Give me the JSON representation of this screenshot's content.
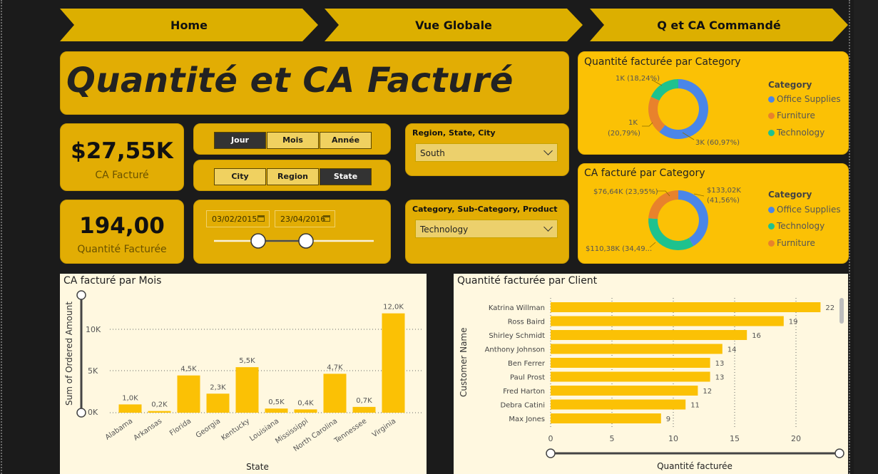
{
  "nav": [
    {
      "label": "Home"
    },
    {
      "label": "Vue Globale"
    },
    {
      "label": "Q et CA Commandé"
    }
  ],
  "page_title": "Quantité et CA Facturé",
  "kpis": {
    "ca": {
      "value": "$27,55K",
      "label": "CA Facturé"
    },
    "qty": {
      "value": "194,00",
      "label": "Quantité Facturée"
    }
  },
  "period_toggle": {
    "options": [
      "Jour",
      "Mois",
      "Année"
    ],
    "selected": "Jour"
  },
  "geo_toggle": {
    "options": [
      "City",
      "Region",
      "State"
    ],
    "selected": "State"
  },
  "date_range": {
    "start": "03/02/2015",
    "end": "23/04/2016"
  },
  "slicers": {
    "region": {
      "title": "Region, State, City",
      "value": "South"
    },
    "category": {
      "title": "Category, Sub-Category, Product",
      "value": "Technology"
    }
  },
  "colors": {
    "accent": "#fbc105",
    "blue": "#4a86e8",
    "orange": "#e8822c",
    "teal": "#1ec28e",
    "panel": "#fff8e0"
  },
  "donut_qty": {
    "title": "Quantité facturée par Category",
    "legend_title": "Category",
    "slices": [
      {
        "name": "Office Supplies",
        "label": "3K (60,97%)",
        "value": 60.97,
        "color": "#4a86e8"
      },
      {
        "name": "Furniture",
        "label_lines": [
          "1K",
          "(20,79%)"
        ],
        "value": 20.79,
        "color": "#e8822c"
      },
      {
        "name": "Technology",
        "label": "1K (18,24%)",
        "value": 18.24,
        "color": "#1ec28e"
      }
    ]
  },
  "donut_ca": {
    "title": "CA facturé par Category",
    "legend_title": "Category",
    "slices": [
      {
        "name": "Office Supplies",
        "label_lines": [
          "$133,02K",
          "(41,56%)"
        ],
        "value": 41.56,
        "color": "#4a86e8"
      },
      {
        "name": "Technology",
        "label": "$110,38K (34,49...",
        "value": 34.49,
        "color": "#1ec28e"
      },
      {
        "name": "Furniture",
        "label": "$76,64K (23,95%)",
        "value": 23.95,
        "color": "#e8822c"
      }
    ]
  },
  "chart_data": [
    {
      "type": "bar",
      "title": "CA facturé par Mois",
      "xlabel": "State",
      "ylabel": "Sum of Ordered Amount",
      "categories": [
        "Alabama",
        "Arkansas",
        "Florida",
        "Georgia",
        "Kentucky",
        "Louisiana",
        "Mississippi",
        "North Carolina",
        "Tennessee",
        "Virginia"
      ],
      "values": [
        1000,
        200,
        4500,
        2300,
        5500,
        500,
        400,
        4700,
        700,
        12000
      ],
      "data_labels": [
        "1,0K",
        "0,2K",
        "4,5K",
        "2,3K",
        "5,5K",
        "0,5K",
        "0,4K",
        "4,7K",
        "0,7K",
        "12,0K"
      ],
      "yticks": [
        "0K",
        "5K",
        "10K"
      ],
      "ylim": [
        0,
        13000
      ],
      "grid": true
    },
    {
      "type": "bar",
      "orientation": "horizontal",
      "title": "Quantité facturée par Client",
      "xlabel": "Quantité facturée",
      "ylabel": "Customer Name",
      "categories": [
        "Katrina Willman",
        "Ross Baird",
        "Shirley Schmidt",
        "Anthony Johnson",
        "Ben Ferrer",
        "Paul Prost",
        "Fred Harton",
        "Debra Catini",
        "Max Jones"
      ],
      "values": [
        22,
        19,
        16,
        14,
        13,
        13,
        12,
        11,
        9
      ],
      "xticks": [
        "0",
        "5",
        "10",
        "15",
        "20"
      ],
      "xlim": [
        0,
        24
      ],
      "grid": true
    }
  ]
}
